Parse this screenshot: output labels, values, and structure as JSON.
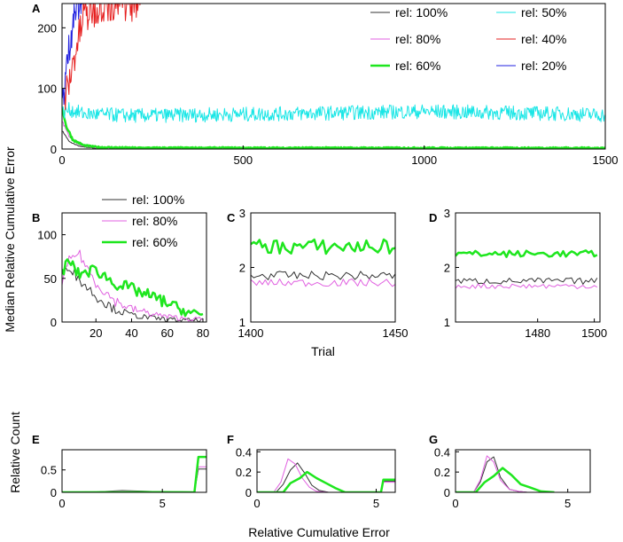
{
  "figure": {
    "ylabel_top": "Median Relative Cumulative Error",
    "ylabel_bottom": "Relative Count",
    "xlabel_bottom": "Relative Cumulative Error"
  },
  "colors": {
    "rel100": "#333333",
    "rel80": "#e060e0",
    "rel60": "#1ee61e",
    "rel50": "#19e6e6",
    "rel40": "#e62020",
    "rel20": "#2020e0"
  },
  "chart_data": [
    {
      "panel": "A",
      "type": "line",
      "xlim": [
        0,
        1500
      ],
      "ylim": [
        0,
        240
      ],
      "xticks": [
        "0",
        "500",
        "1000",
        "1500"
      ],
      "xtick_values": [
        0,
        500,
        1000,
        1500
      ],
      "yticks": [
        "0",
        "100",
        "200"
      ],
      "ytick_values": [
        0,
        100,
        200
      ],
      "legend": [
        "rel: 100%",
        "rel: 50%",
        "rel: 80%",
        "rel: 40%",
        "rel: 60%",
        "rel: 20%"
      ],
      "series": [
        {
          "name": "rel: 100%",
          "color": "#333333",
          "width": 1,
          "noise": 1.2,
          "x": [
            1,
            20,
            50,
            100,
            150,
            1500
          ],
          "y": [
            30,
            12,
            4,
            1,
            0.5,
            0.3
          ]
        },
        {
          "name": "rel: 80%",
          "color": "#e060e0",
          "width": 1,
          "noise": 2,
          "x": [
            1,
            20,
            50,
            100,
            200,
            1500
          ],
          "y": [
            45,
            20,
            6,
            2,
            1,
            0.6
          ]
        },
        {
          "name": "rel: 60%",
          "color": "#1ee61e",
          "width": 2.5,
          "noise": 3,
          "x": [
            1,
            10,
            30,
            60,
            100,
            200,
            1500
          ],
          "y": [
            70,
            40,
            15,
            6,
            3,
            2,
            1.8
          ]
        },
        {
          "name": "rel: 50%",
          "color": "#19e6e6",
          "width": 1,
          "noise": 12,
          "x": [
            1,
            20,
            60,
            200,
            600,
            1000,
            1400,
            1500
          ],
          "y": [
            60,
            65,
            58,
            55,
            58,
            62,
            58,
            56
          ]
        },
        {
          "name": "rel: 40%",
          "color": "#e62020",
          "width": 1,
          "noise": 30,
          "x": [
            1,
            20,
            40,
            60,
            100,
            150,
            225
          ],
          "y": [
            70,
            110,
            170,
            215,
            235,
            240,
            240
          ]
        },
        {
          "name": "rel: 20%",
          "color": "#2020e0",
          "width": 1,
          "noise": 30,
          "x": [
            1,
            10,
            20,
            30,
            40,
            55
          ],
          "y": [
            80,
            120,
            170,
            210,
            235,
            240
          ]
        }
      ]
    },
    {
      "panel": "B",
      "type": "line",
      "xlim": [
        1,
        82
      ],
      "ylim": [
        0,
        125
      ],
      "xticks": [
        "20",
        "40",
        "60",
        "80"
      ],
      "xtick_values": [
        20,
        40,
        60,
        80
      ],
      "yticks": [
        "0",
        "50",
        "100"
      ],
      "ytick_values": [
        0,
        50,
        100
      ],
      "legend": [
        "rel: 100%",
        "rel: 80%",
        "rel: 60%"
      ],
      "series": [
        {
          "name": "rel: 100%",
          "color": "#333333",
          "width": 1,
          "noise": 6,
          "x": [
            1,
            5,
            10,
            20,
            30,
            40,
            50,
            60,
            70,
            80
          ],
          "y": [
            55,
            65,
            50,
            30,
            15,
            8,
            5,
            3,
            2,
            2
          ]
        },
        {
          "name": "rel: 80%",
          "color": "#e060e0",
          "width": 1,
          "noise": 6,
          "x": [
            1,
            5,
            10,
            20,
            30,
            40,
            50,
            60,
            70,
            80
          ],
          "y": [
            45,
            70,
            80,
            45,
            25,
            15,
            10,
            6,
            4,
            3
          ]
        },
        {
          "name": "rel: 60%",
          "color": "#1ee61e",
          "width": 2.5,
          "noise": 7,
          "x": [
            1,
            5,
            10,
            20,
            30,
            40,
            50,
            60,
            70,
            80
          ],
          "y": [
            58,
            70,
            55,
            60,
            45,
            38,
            30,
            22,
            12,
            8
          ]
        }
      ]
    },
    {
      "panel": "C",
      "type": "line",
      "xlim": [
        1400,
        1450
      ],
      "ylim": [
        1,
        3
      ],
      "xlabel": "Trial",
      "xticks": [
        "1400",
        "1450"
      ],
      "xtick_values": [
        1400,
        1450
      ],
      "yticks": [
        "1",
        "2",
        "3"
      ],
      "ytick_values": [
        1,
        2,
        3
      ],
      "series": [
        {
          "name": "rel: 100%",
          "color": "#333333",
          "width": 1,
          "noise": 0.08,
          "x": [
            1400,
            1450
          ],
          "y": [
            1.85,
            1.85
          ]
        },
        {
          "name": "rel: 80%",
          "color": "#e060e0",
          "width": 1,
          "noise": 0.07,
          "x": [
            1400,
            1450
          ],
          "y": [
            1.72,
            1.72
          ]
        },
        {
          "name": "rel: 60%",
          "color": "#1ee61e",
          "width": 2.5,
          "noise": 0.14,
          "x": [
            1400,
            1450
          ],
          "y": [
            2.38,
            2.38
          ]
        }
      ]
    },
    {
      "panel": "D",
      "type": "line",
      "xlim": [
        1451,
        1502
      ],
      "ylim": [
        1,
        3
      ],
      "xticks": [
        "1480",
        "1500"
      ],
      "xtick_values": [
        1480,
        1500
      ],
      "yticks": [
        "1",
        "2",
        "3"
      ],
      "ytick_values": [
        1,
        2,
        3
      ],
      "series": [
        {
          "name": "rel: 100%",
          "color": "#333333",
          "width": 1,
          "noise": 0.06,
          "x": [
            1451,
            1501
          ],
          "y": [
            1.75,
            1.75
          ]
        },
        {
          "name": "rel: 80%",
          "color": "#e060e0",
          "width": 1,
          "noise": 0.05,
          "x": [
            1451,
            1501
          ],
          "y": [
            1.66,
            1.66
          ]
        },
        {
          "name": "rel: 60%",
          "color": "#1ee61e",
          "width": 2.5,
          "noise": 0.06,
          "x": [
            1451,
            1501
          ],
          "y": [
            2.25,
            2.25
          ]
        }
      ]
    },
    {
      "panel": "E",
      "type": "line",
      "xlim": [
        0,
        7.2
      ],
      "ylim": [
        0,
        0.95
      ],
      "xticks": [
        "0",
        "5"
      ],
      "xtick_values": [
        0,
        5
      ],
      "yticks": [
        "0",
        "0.5"
      ],
      "ytick_values": [
        0,
        0.5
      ],
      "series": [
        {
          "name": "rel: 100%",
          "color": "#333333",
          "width": 1,
          "x": [
            0,
            1.5,
            3,
            4.5,
            6.6,
            6.8,
            7.2
          ],
          "y": [
            0,
            0.005,
            0.04,
            0.02,
            0.0,
            0.52,
            0.52
          ]
        },
        {
          "name": "rel: 80%",
          "color": "#e060e0",
          "width": 1,
          "x": [
            0,
            1.5,
            3,
            4.5,
            6.6,
            6.8,
            7.2
          ],
          "y": [
            0,
            0.005,
            0.03,
            0.015,
            0.0,
            0.57,
            0.57
          ]
        },
        {
          "name": "rel: 60%",
          "color": "#1ee61e",
          "width": 2.5,
          "x": [
            0,
            3,
            6,
            6.6,
            6.8,
            7.2
          ],
          "y": [
            0,
            0.003,
            0.002,
            0.0,
            0.79,
            0.79
          ]
        }
      ]
    },
    {
      "panel": "F",
      "type": "line",
      "xlim": [
        0,
        5.8
      ],
      "ylim": [
        0,
        0.42
      ],
      "xticks": [
        "0",
        "5"
      ],
      "xtick_values": [
        0,
        5
      ],
      "yticks": [
        "0",
        "0.2",
        "0.4"
      ],
      "ytick_values": [
        0,
        0.2,
        0.4
      ],
      "series": [
        {
          "name": "rel: 100%",
          "color": "#333333",
          "width": 1,
          "x": [
            0,
            0.8,
            1.1,
            1.4,
            1.7,
            2.0,
            2.3,
            2.6,
            3.0,
            5.2,
            5.3,
            5.8
          ],
          "y": [
            0,
            0.0,
            0.08,
            0.22,
            0.29,
            0.19,
            0.07,
            0.02,
            0.0,
            0.0,
            0.11,
            0.11
          ]
        },
        {
          "name": "rel: 80%",
          "color": "#e060e0",
          "width": 1,
          "x": [
            0,
            0.7,
            1.0,
            1.3,
            1.6,
            1.9,
            2.2,
            2.5,
            3.0,
            5.2,
            5.3,
            5.8
          ],
          "y": [
            0,
            0.0,
            0.1,
            0.33,
            0.28,
            0.14,
            0.05,
            0.01,
            0.0,
            0.0,
            0.1,
            0.1
          ]
        },
        {
          "name": "rel: 60%",
          "color": "#1ee61e",
          "width": 2.5,
          "x": [
            0,
            1.1,
            1.4,
            1.8,
            2.1,
            2.5,
            2.9,
            3.3,
            3.7,
            4.0,
            5.2,
            5.3,
            5.8
          ],
          "y": [
            0,
            0.0,
            0.09,
            0.14,
            0.2,
            0.14,
            0.09,
            0.04,
            0.0,
            0.0,
            0.0,
            0.125,
            0.125
          ]
        }
      ]
    },
    {
      "panel": "G",
      "type": "line",
      "xlim": [
        0,
        6
      ],
      "ylim": [
        0,
        0.42
      ],
      "xticks": [
        "0",
        "5"
      ],
      "xtick_values": [
        0,
        5
      ],
      "yticks": [
        "0",
        "0.2",
        "0.4"
      ],
      "ytick_values": [
        0,
        0.2,
        0.4
      ],
      "series": [
        {
          "name": "rel: 100%",
          "color": "#333333",
          "width": 1,
          "x": [
            0,
            0.8,
            1.1,
            1.4,
            1.7,
            2.0,
            2.4,
            2.8,
            3.2
          ],
          "y": [
            0,
            0.0,
            0.1,
            0.3,
            0.35,
            0.15,
            0.03,
            0.01,
            0.0
          ]
        },
        {
          "name": "rel: 80%",
          "color": "#e060e0",
          "width": 1,
          "x": [
            0,
            0.8,
            1.1,
            1.4,
            1.7,
            2.0,
            2.4,
            2.8,
            3.2
          ],
          "y": [
            0,
            0.0,
            0.12,
            0.36,
            0.3,
            0.12,
            0.03,
            0.01,
            0.0
          ]
        },
        {
          "name": "rel: 60%",
          "color": "#1ee61e",
          "width": 2.5,
          "x": [
            0,
            0.9,
            1.3,
            1.7,
            2.1,
            2.5,
            2.9,
            3.3,
            3.8,
            4.4
          ],
          "y": [
            0,
            0.0,
            0.1,
            0.16,
            0.24,
            0.17,
            0.08,
            0.05,
            0.01,
            0.0
          ]
        }
      ]
    }
  ]
}
